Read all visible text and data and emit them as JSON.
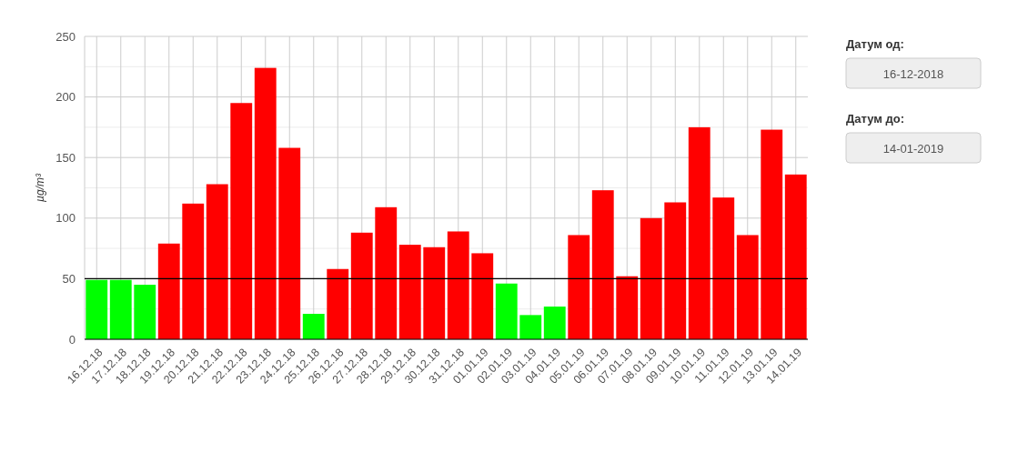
{
  "chart_data": {
    "type": "bar",
    "ylabel": "µg/m³",
    "categories": [
      "16.12.18",
      "17.12.18",
      "18.12.18",
      "19.12.18",
      "20.12.18",
      "21.12.18",
      "22.12.18",
      "23.12.18",
      "24.12.18",
      "25.12.18",
      "26.12.18",
      "27.12.18",
      "28.12.18",
      "29.12.18",
      "30.12.18",
      "31.12.18",
      "01.01.19",
      "02.01.19",
      "03.01.19",
      "04.01.19",
      "05.01.19",
      "06.01.19",
      "07.01.19",
      "08.01.19",
      "09.01.19",
      "10.01.19",
      "11.01.19",
      "12.01.19",
      "13.01.19",
      "14.01.19"
    ],
    "values": [
      49,
      49,
      45,
      79,
      112,
      128,
      195,
      224,
      158,
      21,
      58,
      88,
      109,
      78,
      76,
      89,
      71,
      46,
      20,
      27,
      86,
      123,
      52,
      100,
      113,
      175,
      117,
      86,
      173,
      136
    ],
    "colors": [
      "#00ff00",
      "#00ff00",
      "#00ff00",
      "#ff0000",
      "#ff0000",
      "#ff0000",
      "#ff0000",
      "#ff0000",
      "#ff0000",
      "#00ff00",
      "#ff0000",
      "#ff0000",
      "#ff0000",
      "#ff0000",
      "#ff0000",
      "#ff0000",
      "#ff0000",
      "#00ff00",
      "#00ff00",
      "#00ff00",
      "#ff0000",
      "#ff0000",
      "#ff0000",
      "#ff0000",
      "#ff0000",
      "#ff0000",
      "#ff0000",
      "#ff0000",
      "#ff0000",
      "#ff0000"
    ],
    "ylim": [
      0,
      250
    ],
    "yticks": [
      0,
      {
        "value": 25,
        "label": null
      },
      50,
      {
        "value": 75,
        "label": null
      },
      100,
      {
        "value": 125,
        "label": null
      },
      150,
      {
        "value": 175,
        "label": null
      },
      200,
      {
        "value": 225,
        "label": null
      },
      250
    ],
    "grid": true,
    "ref_lines": [
      {
        "axis": "y",
        "value": 50,
        "color": "#000000"
      }
    ],
    "annotations": [
      "Датум од:",
      "16-12-2018",
      "Датум до:",
      "14-01-2019"
    ]
  }
}
